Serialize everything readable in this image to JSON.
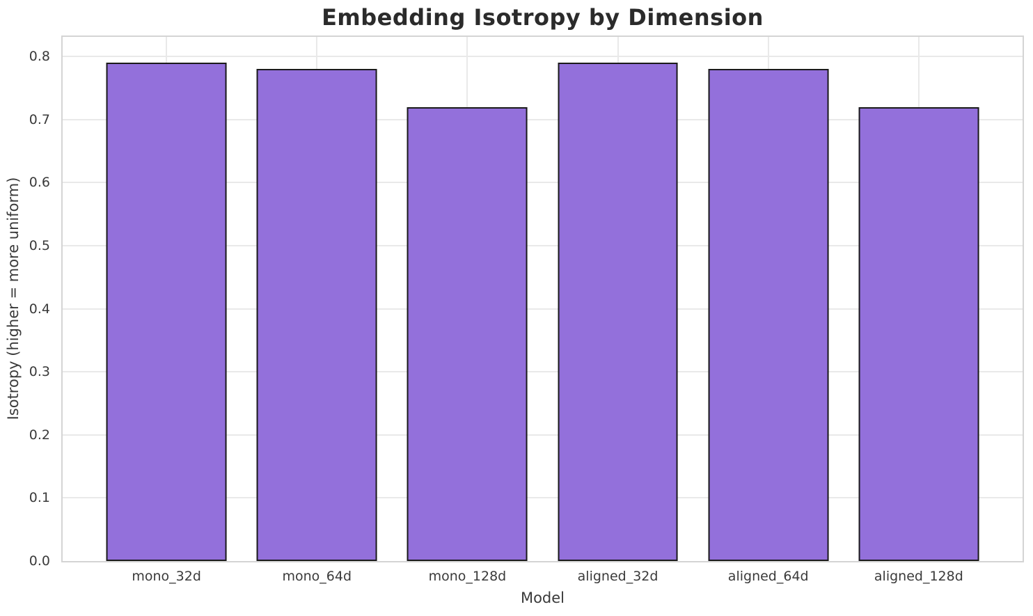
{
  "chart_data": {
    "type": "bar",
    "title": "Embedding Isotropy by Dimension",
    "xlabel": "Model",
    "ylabel": "Isotropy (higher = more uniform)",
    "categories": [
      "mono_32d",
      "mono_64d",
      "mono_128d",
      "aligned_32d",
      "aligned_64d",
      "aligned_128d"
    ],
    "values": [
      0.79,
      0.78,
      0.72,
      0.79,
      0.78,
      0.72
    ],
    "yticks": [
      0.0,
      0.1,
      0.2,
      0.3,
      0.4,
      0.5,
      0.6,
      0.7,
      0.8
    ],
    "ylim": [
      0,
      0.831
    ],
    "grid": true,
    "legend": null,
    "colors": {
      "bar_fill": "#9370DB",
      "bar_edge": "#1a1a1a",
      "grid_line": "#e9e9e9",
      "spine": "#d4d4d4",
      "title_text": "#2b2b2b",
      "tick_text": "#3a3a3a",
      "background": "#ffffff"
    }
  }
}
